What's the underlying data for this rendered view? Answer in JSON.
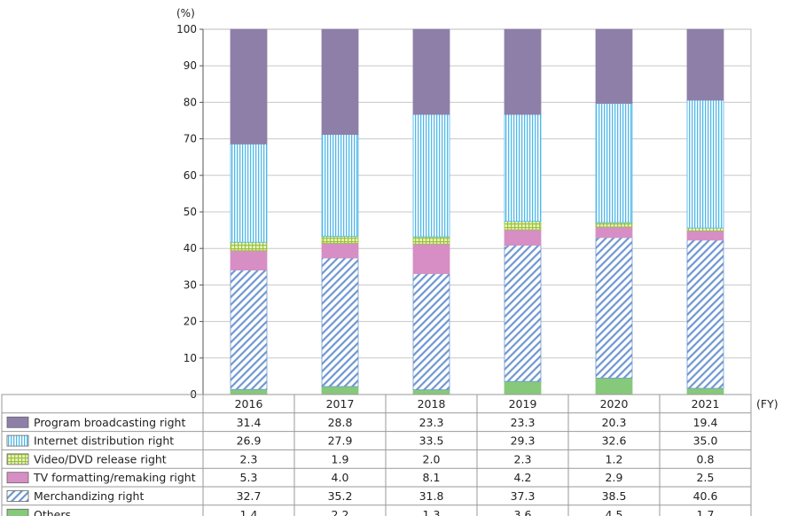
{
  "chart_data": {
    "type": "bar",
    "stacked": true,
    "normalized_percent": true,
    "y_unit": "(%)",
    "x_unit": "(FY)",
    "categories": [
      "2016",
      "2017",
      "2018",
      "2019",
      "2020",
      "2021"
    ],
    "ylim": [
      0,
      100
    ],
    "yticks": [
      0,
      10,
      20,
      30,
      40,
      50,
      60,
      70,
      80,
      90,
      100
    ],
    "grid": true,
    "legend_placement": "bottom-table",
    "series": [
      {
        "name": "Program broadcasting right",
        "values": [
          31.4,
          28.8,
          23.3,
          23.3,
          20.3,
          19.4
        ],
        "color": "#8e7fa8",
        "pattern": "solid"
      },
      {
        "name": "Internet distribution right",
        "values": [
          26.9,
          27.9,
          33.5,
          29.3,
          32.6,
          35.0
        ],
        "color": "#7fcff2",
        "pattern": "vertical-lines"
      },
      {
        "name": "Video/DVD release right",
        "values": [
          2.3,
          1.9,
          2.0,
          2.3,
          1.2,
          0.8
        ],
        "color": "#b9d66a",
        "pattern": "grid"
      },
      {
        "name": "TV formatting/remaking right",
        "values": [
          5.3,
          4.0,
          8.1,
          4.2,
          2.9,
          2.5
        ],
        "color": "#d68ec4",
        "pattern": "solid"
      },
      {
        "name": "Merchandizing right",
        "values": [
          32.7,
          35.2,
          31.8,
          37.3,
          38.5,
          40.6
        ],
        "color": "#7ea3d4",
        "pattern": "diagonal"
      },
      {
        "name": "Others",
        "values": [
          1.4,
          2.2,
          1.3,
          3.6,
          4.5,
          1.7
        ],
        "color": "#86c97a",
        "pattern": "solid"
      }
    ]
  }
}
